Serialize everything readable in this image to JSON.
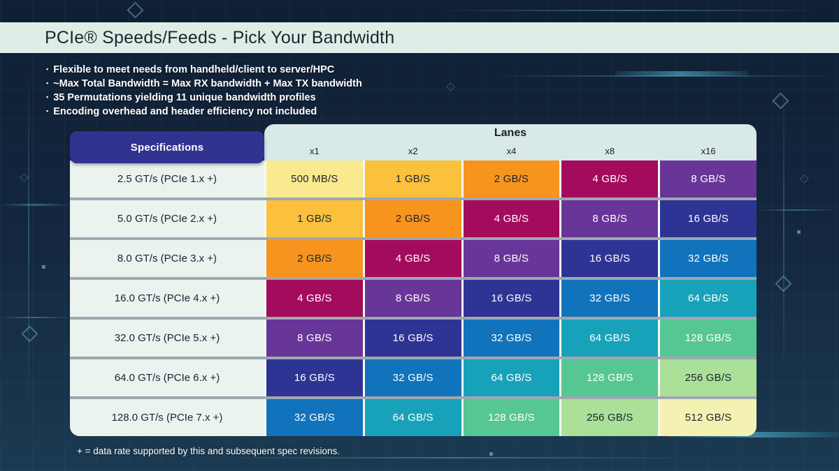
{
  "title_bar": {
    "title": "PCIe® Speeds/Feeds - Pick Your Bandwidth"
  },
  "bullets": [
    "Flexible to meet needs from handheld/client to server/HPC",
    "~Max Total Bandwidth = Max RX bandwidth + Max TX bandwidth",
    "35 Permutations yielding 11 unique bandwidth profiles",
    "Encoding overhead and header efficiency not included"
  ],
  "footnote": "+ = data rate supported by this and subsequent spec revisions.",
  "chart_data": {
    "type": "table",
    "title": "PCIe® Speeds/Feeds - Pick Your Bandwidth",
    "spec_header": "Specifications",
    "lanes_header": "Lanes",
    "columns": [
      "x1",
      "x2",
      "x4",
      "x8",
      "x16"
    ],
    "rows": [
      {
        "spec": "2.5 GT/s (PCIe 1.x +)",
        "values": [
          "500 MB/S",
          "1 GB/S",
          "2 GB/S",
          "4 GB/S",
          "8 GB/S"
        ]
      },
      {
        "spec": "5.0 GT/s (PCIe 2.x +)",
        "values": [
          "1 GB/S",
          "2 GB/S",
          "4 GB/S",
          "8 GB/S",
          "16 GB/S"
        ]
      },
      {
        "spec": "8.0 GT/s (PCIe 3.x +)",
        "values": [
          "2 GB/S",
          "4 GB/S",
          "8 GB/S",
          "16 GB/S",
          "32 GB/S"
        ]
      },
      {
        "spec": "16.0 GT/s (PCIe 4.x +)",
        "values": [
          "4 GB/S",
          "8 GB/S",
          "16 GB/S",
          "32 GB/S",
          "64 GB/S"
        ]
      },
      {
        "spec": "32.0 GT/s (PCIe 5.x +)",
        "values": [
          "8 GB/S",
          "16 GB/S",
          "32 GB/S",
          "64 GB/S",
          "128 GB/S"
        ]
      },
      {
        "spec": "64.0 GT/s (PCIe 6.x +)",
        "values": [
          "16 GB/S",
          "32 GB/S",
          "64 GB/S",
          "128 GB/S",
          "256 GB/S"
        ]
      },
      {
        "spec": "128.0 GT/s (PCIe 7.x +)",
        "values": [
          "32 GB/S",
          "64 GB/S",
          "128 GB/S",
          "256 GB/S",
          "512 GB/S"
        ]
      }
    ],
    "value_styles": {
      "500 MB/S": {
        "bg": "#FAE98F",
        "fg": "#1A2430"
      },
      "1 GB/S": {
        "bg": "#FBC13D",
        "fg": "#1A2430"
      },
      "2 GB/S": {
        "bg": "#F7941E",
        "fg": "#1A2430"
      },
      "4 GB/S": {
        "bg": "#A30B5D",
        "fg": "#FFFFFF"
      },
      "8 GB/S": {
        "bg": "#683598",
        "fg": "#FFFFFF"
      },
      "16 GB/S": {
        "bg": "#2E3494",
        "fg": "#FFFFFF"
      },
      "32 GB/S": {
        "bg": "#1173BC",
        "fg": "#FFFFFF"
      },
      "64 GB/S": {
        "bg": "#18A2B9",
        "fg": "#FFFFFF"
      },
      "128 GB/S": {
        "bg": "#56C793",
        "fg": "#FFFFFF"
      },
      "256 GB/S": {
        "bg": "#ABE098",
        "fg": "#1A2430"
      },
      "512 GB/S": {
        "bg": "#F4F2B3",
        "fg": "#1A2430"
      }
    }
  },
  "colors": {
    "page_background": "#13273F",
    "title_band_bg": "#DFEDE7",
    "title_text": "#1B2730",
    "spec_header_bg": "#303390",
    "lanes_band_bg": "#D8E9E8",
    "table_body_bg": "#F3F9F5",
    "spec_cell_bg": "#EAF3EE",
    "row_divider": "#9EA8B1",
    "circuit_accent": "#5AC8E6"
  }
}
